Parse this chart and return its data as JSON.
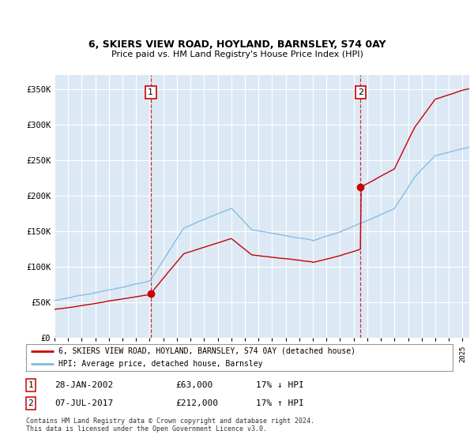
{
  "title1": "6, SKIERS VIEW ROAD, HOYLAND, BARNSLEY, S74 0AY",
  "title2": "Price paid vs. HM Land Registry's House Price Index (HPI)",
  "ylim": [
    0,
    370000
  ],
  "yticks": [
    0,
    50000,
    100000,
    150000,
    200000,
    250000,
    300000,
    350000
  ],
  "ytick_labels": [
    "£0",
    "£50K",
    "£100K",
    "£150K",
    "£200K",
    "£250K",
    "£300K",
    "£350K"
  ],
  "fig_bg": "#ffffff",
  "plot_bg": "#dce9f5",
  "grid_color": "#ffffff",
  "hpi_color": "#7db9e0",
  "price_color": "#cc0000",
  "sale1_date": 2002.07,
  "sale1_price": 63000,
  "sale1_label": "1",
  "sale2_date": 2017.51,
  "sale2_price": 212000,
  "sale2_label": "2",
  "legend_line1": "6, SKIERS VIEW ROAD, HOYLAND, BARNSLEY, S74 0AY (detached house)",
  "legend_line2": "HPI: Average price, detached house, Barnsley",
  "table_row1": [
    "1",
    "28-JAN-2002",
    "£63,000",
    "17% ↓ HPI"
  ],
  "table_row2": [
    "2",
    "07-JUL-2017",
    "£212,000",
    "17% ↑ HPI"
  ],
  "footnote1": "Contains HM Land Registry data © Crown copyright and database right 2024.",
  "footnote2": "This data is licensed under the Open Government Licence v3.0.",
  "xmin": 1995,
  "xmax": 2025.5
}
